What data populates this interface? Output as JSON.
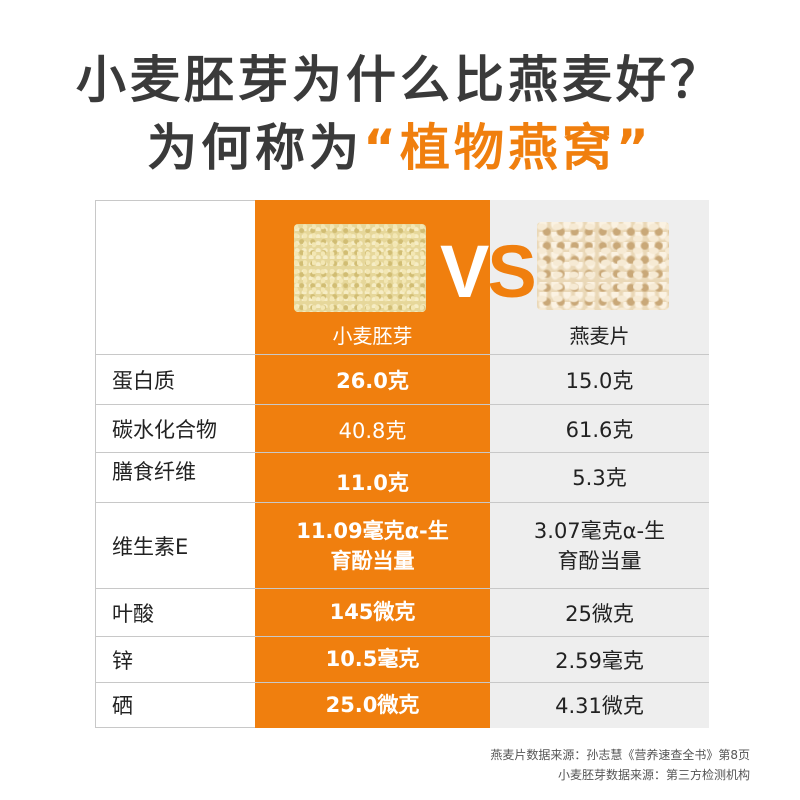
{
  "title": {
    "line1": "小麦胚芽为什么比燕麦好？",
    "line2_prefix": "为何称为",
    "line2_highlight": "“植物燕窝”"
  },
  "vs": {
    "v": "V",
    "s": "S"
  },
  "columns": {
    "wheat": "小麦胚芽",
    "oat": "燕麦片"
  },
  "rows": [
    {
      "name": "蛋白质",
      "wheat": "26.0克",
      "oat": "15.0克"
    },
    {
      "name": "碳水化合物",
      "wheat": "40.8克",
      "oat": "61.6克"
    },
    {
      "name": "膳食纤维",
      "wheat": "11.0克",
      "oat": "5.3克"
    },
    {
      "name": "维生素E",
      "wheat_line1": "11.09毫克α-生",
      "wheat_line2": "育酚当量",
      "oat_line1": "3.07毫克α-生",
      "oat_line2": "育酚当量"
    },
    {
      "name": "叶酸",
      "wheat": "145微克",
      "oat": "25微克"
    },
    {
      "name": "锌",
      "wheat": "10.5毫克",
      "oat": "2.59毫克"
    },
    {
      "name": "硒",
      "wheat": "25.0微克",
      "oat": "4.31微克"
    }
  ],
  "footnotes": {
    "oat_source": "燕麦片数据来源：孙志慧《营养速查全书》第8页",
    "wheat_source": "小麦胚芽数据来源：第三方检测机构"
  },
  "colors": {
    "accent": "#f07f0e",
    "oat_column": "#eeeeee",
    "title_text": "#3a3a3a"
  }
}
